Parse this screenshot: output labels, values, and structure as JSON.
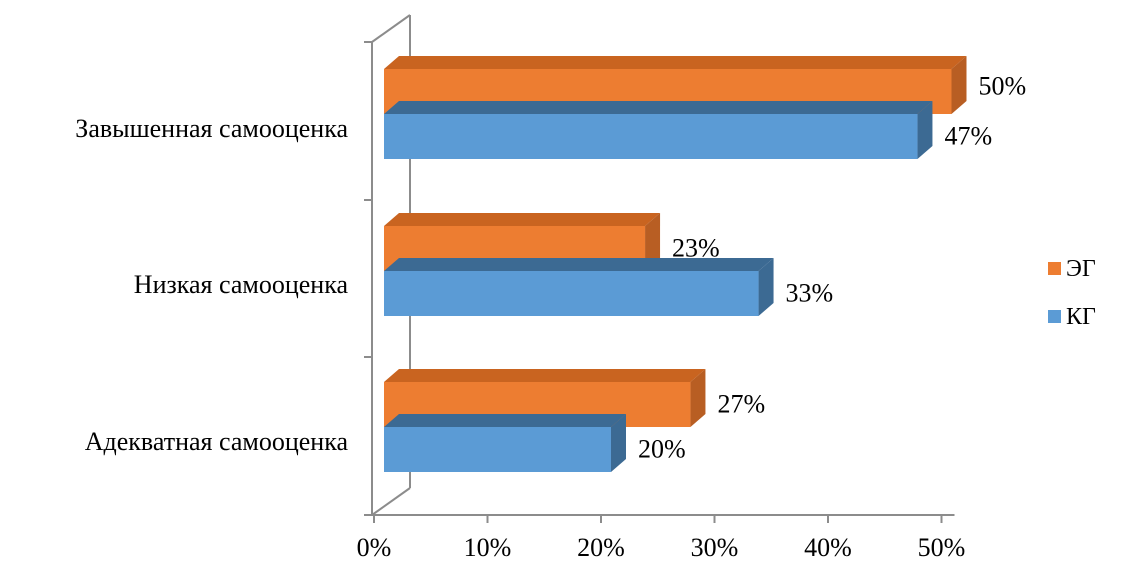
{
  "chart_data": {
    "type": "bar",
    "orientation": "horizontal",
    "style": "3d",
    "categories": [
      "Завышенная самооценка",
      "Низкая самооценка",
      "Адекватная самооценка"
    ],
    "series": [
      {
        "name": "ЭГ",
        "values": [
          50,
          23,
          27
        ],
        "labels": [
          "50%",
          "23%",
          "27%"
        ],
        "color": "#ED7D31",
        "side_color": "#B85E23",
        "top_color": "#C96420"
      },
      {
        "name": "КГ",
        "values": [
          47,
          33,
          20
        ],
        "labels": [
          "47%",
          "33%",
          "20%"
        ],
        "color": "#5B9BD5",
        "side_color": "#3C6A93",
        "top_color": "#3C6A93"
      }
    ],
    "x_ticks": [
      "0%",
      "10%",
      "20%",
      "30%",
      "40%",
      "50%"
    ],
    "xlim": [
      0,
      50
    ],
    "grid": false,
    "legend_position": "right"
  }
}
